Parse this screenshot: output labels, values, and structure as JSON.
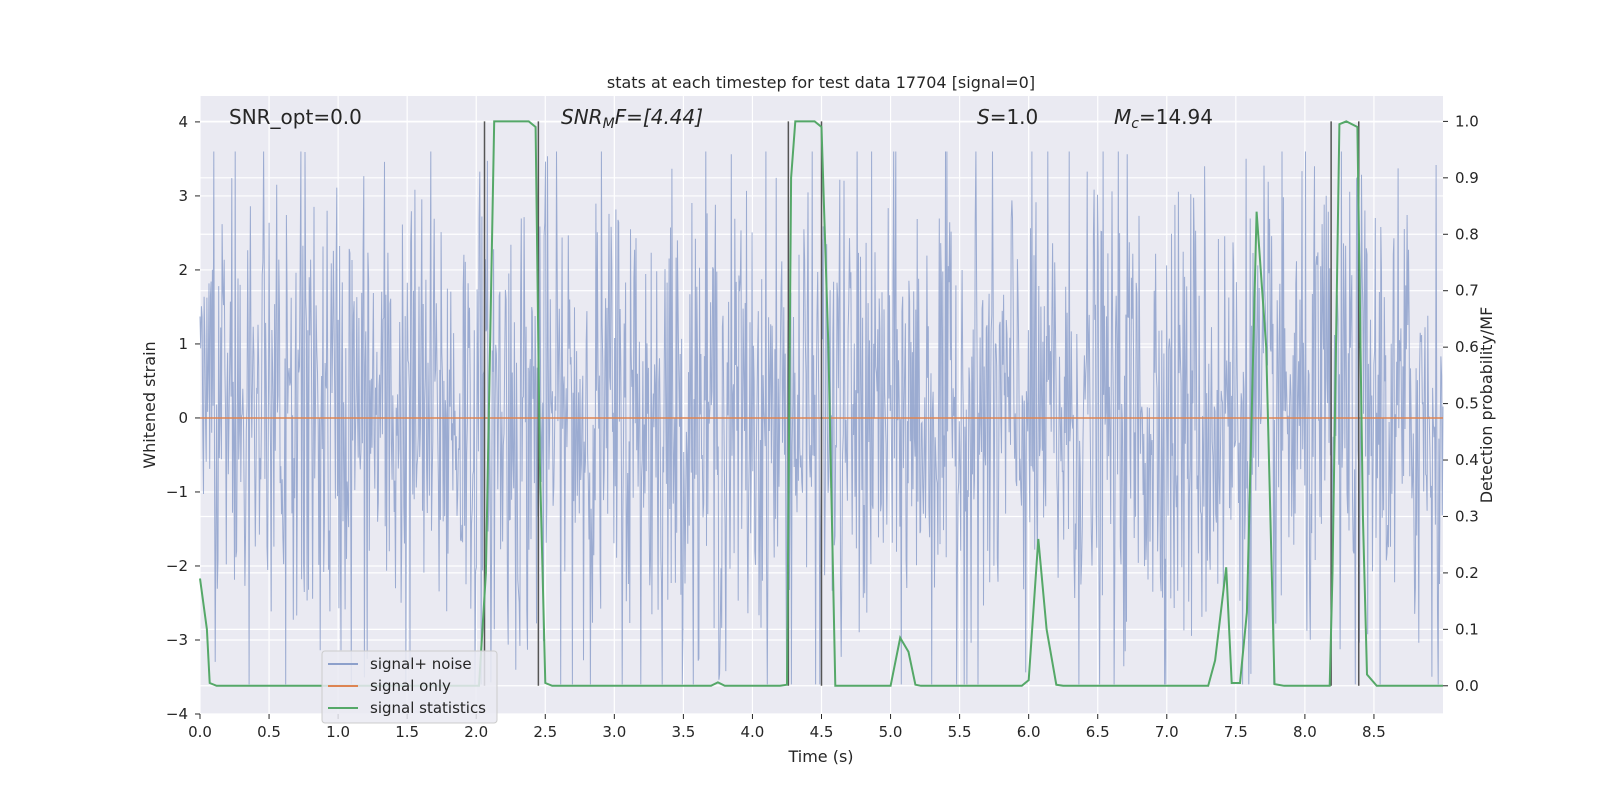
{
  "chart_data": {
    "type": "line",
    "title": "stats at each timestep for test data 17704 [signal=0]",
    "xlabel": "Time (s)",
    "ylabel": "Whitened strain",
    "ylabel_right": "Detection probability/MF",
    "xlim": [
      0.0,
      9.0
    ],
    "ylim": [
      -4.0,
      4.35
    ],
    "ylim_right": [
      -0.05,
      1.045
    ],
    "xticks": [
      "0.0",
      "0.5",
      "1.0",
      "1.5",
      "2.0",
      "2.5",
      "3.0",
      "3.5",
      "4.0",
      "4.5",
      "5.0",
      "5.5",
      "6.0",
      "6.5",
      "7.0",
      "7.5",
      "8.0",
      "8.5"
    ],
    "yticks_left": [
      "4",
      "3",
      "2",
      "1",
      "0",
      "−1",
      "−2",
      "−3",
      "−4"
    ],
    "yticks_right": [
      "1.0",
      "0.9",
      "0.8",
      "0.7",
      "0.6",
      "0.5",
      "0.4",
      "0.3",
      "0.2",
      "0.1",
      "0.0"
    ],
    "grid": true,
    "legend_placement": "lower-left",
    "annotations": {
      "snr_opt": "SNR_opt=0.0",
      "snr_mf_prefix": "SNR",
      "snr_mf_sub": "M",
      "snr_mf_rest": "F=[4.44]",
      "s_label": "S",
      "s_value": "=1.0",
      "mc_label": "M",
      "mc_sub": "c",
      "mc_value": "=14.94"
    },
    "vertical_lines_x": [
      2.06,
      2.45,
      4.26,
      4.5,
      8.19,
      8.39
    ],
    "series": [
      {
        "name": "signal+ noise",
        "color": "#8da0cb",
        "noise_envelope": {
          "typical_abs": 1.7,
          "peak_abs": 3.6,
          "samples": 1800
        }
      },
      {
        "name": "signal only",
        "color": "#dd8452",
        "values_constant": 0.0
      },
      {
        "name": "signal statistics",
        "color": "#55a868",
        "axis": "right",
        "points": [
          [
            0.0,
            0.19
          ],
          [
            0.05,
            0.1
          ],
          [
            0.07,
            0.005
          ],
          [
            0.12,
            0.0
          ],
          [
            1.95,
            0.0
          ],
          [
            2.02,
            0.0
          ],
          [
            2.07,
            0.2
          ],
          [
            2.13,
            1.0
          ],
          [
            2.38,
            1.0
          ],
          [
            2.43,
            0.99
          ],
          [
            2.46,
            0.4
          ],
          [
            2.5,
            0.005
          ],
          [
            2.55,
            0.0
          ],
          [
            3.7,
            0.0
          ],
          [
            3.75,
            0.006
          ],
          [
            3.8,
            0.0
          ],
          [
            4.2,
            0.0
          ],
          [
            4.25,
            0.002
          ],
          [
            4.28,
            0.9
          ],
          [
            4.31,
            1.0
          ],
          [
            4.45,
            1.0
          ],
          [
            4.5,
            0.99
          ],
          [
            4.55,
            0.6
          ],
          [
            4.6,
            0.0
          ],
          [
            5.0,
            0.0
          ],
          [
            5.07,
            0.085
          ],
          [
            5.13,
            0.06
          ],
          [
            5.18,
            0.002
          ],
          [
            5.22,
            0.0
          ],
          [
            5.95,
            0.0
          ],
          [
            6.0,
            0.01
          ],
          [
            6.07,
            0.26
          ],
          [
            6.13,
            0.1
          ],
          [
            6.2,
            0.002
          ],
          [
            6.25,
            0.0
          ],
          [
            7.3,
            0.0
          ],
          [
            7.35,
            0.045
          ],
          [
            7.43,
            0.21
          ],
          [
            7.47,
            0.005
          ],
          [
            7.53,
            0.005
          ],
          [
            7.58,
            0.13
          ],
          [
            7.65,
            0.84
          ],
          [
            7.72,
            0.6
          ],
          [
            7.78,
            0.003
          ],
          [
            7.85,
            0.0
          ],
          [
            8.18,
            0.0
          ],
          [
            8.2,
            0.2
          ],
          [
            8.25,
            0.995
          ],
          [
            8.3,
            1.0
          ],
          [
            8.38,
            0.99
          ],
          [
            8.42,
            0.3
          ],
          [
            8.45,
            0.02
          ],
          [
            8.52,
            0.0
          ],
          [
            9.0,
            0.0
          ]
        ]
      }
    ]
  }
}
